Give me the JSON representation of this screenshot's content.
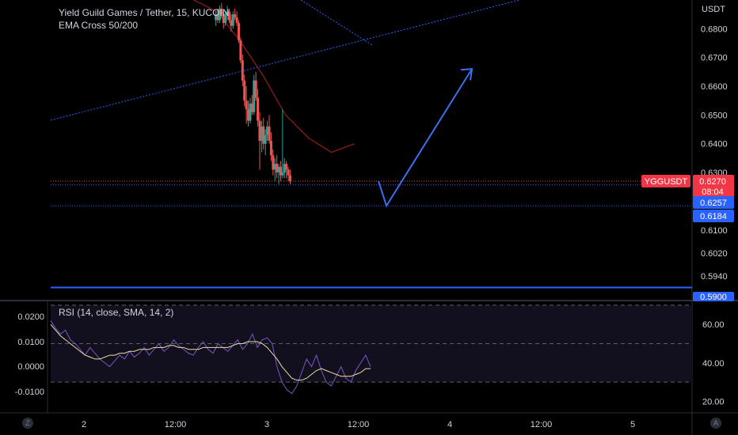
{
  "header": {
    "title": "Yield Guild Games / Tether, 15, KUCOIN",
    "indicator": "EMA Cross 50/200"
  },
  "rsi_panel": {
    "label": "RSI (14, close, SMA, 14, 2)"
  },
  "price_axis": {
    "currency": "USDT",
    "ticks": [
      "0.6800",
      "0.6700",
      "0.6600",
      "0.6500",
      "0.6400",
      "0.6300",
      "0.6100",
      "0.6020",
      "0.5940"
    ]
  },
  "left_axis": {
    "ticks": [
      "0.0200",
      "0.0100",
      "0.0000",
      "-0.0100"
    ]
  },
  "rsi_axis": {
    "ticks": [
      "60.00",
      "40.00",
      "20.00"
    ]
  },
  "time_axis": {
    "ticks": [
      "2",
      "12:00",
      "3",
      "12:00",
      "4",
      "12:00",
      "5"
    ]
  },
  "badges": {
    "symbol": "YGGUSDT",
    "last_price": "0.6270",
    "countdown": "08:04",
    "level_1": "0.6257",
    "level_2": "0.6184",
    "level_3": "0.5900"
  },
  "corner_buttons": {
    "left": "Z",
    "right": "A"
  },
  "colors": {
    "background": "#000000",
    "up_candle": "#26a69a",
    "down_candle": "#ef5350",
    "ema": "#8b1a1a",
    "trendline": "#2962ff",
    "arrow": "#3a6ff0",
    "rsi": "#7e57c2",
    "rsi_ma": "#e8e0a0",
    "last_price_badge": "#f23645",
    "level_badge": "#2962ff"
  },
  "chart_data": [
    {
      "type": "candlestick",
      "title": "Yield Guild Games / Tether, 15, KUCOIN",
      "x_ticks": [
        "2",
        "12:00",
        "3",
        "12:00",
        "4",
        "12:00",
        "5"
      ],
      "ylim": [
        0.586,
        0.69
      ],
      "y_ticks": [
        0.68,
        0.67,
        0.66,
        0.65,
        0.64,
        0.63,
        0.61,
        0.602,
        0.594
      ],
      "series": [
        {
          "name": "candles",
          "start_hour": 33,
          "interval_hours": 0.25,
          "values": [
            [
              0.683,
              0.686,
              0.681,
              0.685
            ],
            [
              0.685,
              0.687,
              0.682,
              0.683
            ],
            [
              0.683,
              0.688,
              0.682,
              0.687
            ],
            [
              0.687,
              0.689,
              0.684,
              0.685
            ],
            [
              0.685,
              0.686,
              0.68,
              0.682
            ],
            [
              0.682,
              0.686,
              0.681,
              0.685
            ],
            [
              0.685,
              0.688,
              0.683,
              0.686
            ],
            [
              0.686,
              0.687,
              0.682,
              0.683
            ],
            [
              0.683,
              0.685,
              0.679,
              0.681
            ],
            [
              0.681,
              0.686,
              0.68,
              0.685
            ],
            [
              0.685,
              0.687,
              0.683,
              0.684
            ],
            [
              0.684,
              0.686,
              0.681,
              0.682
            ],
            [
              0.682,
              0.683,
              0.675,
              0.676
            ],
            [
              0.676,
              0.677,
              0.668,
              0.669
            ],
            [
              0.669,
              0.671,
              0.66,
              0.662
            ],
            [
              0.662,
              0.664,
              0.653,
              0.655
            ],
            [
              0.655,
              0.66,
              0.647,
              0.652
            ],
            [
              0.652,
              0.655,
              0.646,
              0.648
            ],
            [
              0.648,
              0.656,
              0.647,
              0.654
            ],
            [
              0.654,
              0.657,
              0.65,
              0.651
            ],
            [
              0.651,
              0.664,
              0.65,
              0.662
            ],
            [
              0.662,
              0.665,
              0.655,
              0.656
            ],
            [
              0.656,
              0.659,
              0.646,
              0.648
            ],
            [
              0.648,
              0.651,
              0.631,
              0.641
            ],
            [
              0.641,
              0.648,
              0.637,
              0.646
            ],
            [
              0.646,
              0.649,
              0.638,
              0.64
            ],
            [
              0.64,
              0.645,
              0.636,
              0.643
            ],
            [
              0.643,
              0.648,
              0.641,
              0.646
            ],
            [
              0.646,
              0.65,
              0.64,
              0.641
            ],
            [
              0.641,
              0.644,
              0.634,
              0.636
            ],
            [
              0.636,
              0.638,
              0.629,
              0.631
            ],
            [
              0.631,
              0.635,
              0.627,
              0.633
            ],
            [
              0.633,
              0.636,
              0.628,
              0.63
            ],
            [
              0.63,
              0.633,
              0.626,
              0.632
            ],
            [
              0.632,
              0.634,
              0.627,
              0.629
            ],
            [
              0.629,
              0.652,
              0.628,
              0.63
            ],
            [
              0.63,
              0.635,
              0.628,
              0.633
            ],
            [
              0.633,
              0.634,
              0.628,
              0.631
            ],
            [
              0.631,
              0.632,
              0.627,
              0.629
            ],
            [
              0.629,
              0.631,
              0.626,
              0.627
            ]
          ]
        },
        {
          "name": "EMA 50",
          "values": [
            0.69,
            0.686,
            0.676,
            0.664,
            0.65,
            0.642,
            0.637,
            0.64
          ]
        }
      ],
      "levels": [
        0.627,
        0.6257,
        0.6184,
        0.59
      ],
      "arrow": [
        [
          0.6257,
          0.6184
        ],
        [
          0.666
        ]
      ]
    },
    {
      "type": "line",
      "title": "RSI (14, close, SMA, 14, 2)",
      "ylim": [
        14,
        72
      ],
      "y_ticks": [
        60,
        40,
        20
      ],
      "bands": [
        70,
        50,
        30
      ],
      "series": [
        {
          "name": "RSI",
          "values": [
            62,
            58,
            55,
            57,
            52,
            50,
            47,
            44,
            48,
            45,
            42,
            40,
            38,
            41,
            44,
            42,
            46,
            43,
            45,
            48,
            44,
            47,
            50,
            46,
            48,
            52,
            49,
            47,
            45,
            44,
            48,
            51,
            47,
            45,
            50,
            48,
            46,
            49,
            52,
            47,
            50,
            55,
            48,
            52,
            53,
            50,
            38,
            30,
            26,
            24,
            28,
            35,
            42,
            38,
            44,
            36,
            30,
            28,
            33,
            38,
            32,
            30,
            36,
            40,
            44,
            38
          ]
        },
        {
          "name": "RSI MA",
          "values": [
            60,
            57,
            54,
            52,
            50,
            48,
            46,
            44,
            43,
            42,
            42,
            43,
            44,
            44,
            45,
            45,
            46,
            46,
            47,
            47,
            47,
            48,
            48,
            48,
            49,
            49,
            48,
            48,
            47,
            47,
            47,
            48,
            48,
            48,
            48,
            48,
            48,
            49,
            50,
            50,
            51,
            51,
            51,
            50,
            48,
            45,
            42,
            38,
            35,
            32,
            31,
            31,
            32,
            34,
            36,
            37,
            36,
            35,
            34,
            33,
            33,
            33,
            34,
            35,
            37,
            37
          ]
        }
      ]
    }
  ]
}
